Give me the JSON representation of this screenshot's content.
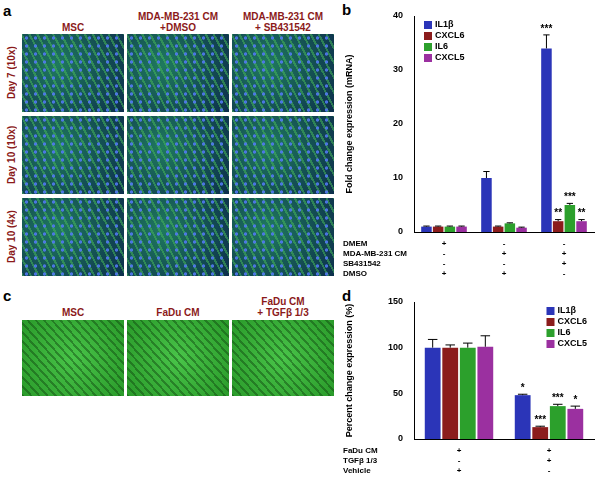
{
  "panel_a": {
    "label": "a",
    "columns": [
      [
        "MSC"
      ],
      [
        "MDA-MB-231 CM",
        "+DMSO"
      ],
      [
        "MDA-MB-231 CM",
        "+ SB431542"
      ]
    ],
    "rows": [
      "Day 7 (10x)",
      "Day 10 (10x)",
      "Day 10 (4x)"
    ]
  },
  "panel_c": {
    "label": "c",
    "columns": [
      [
        "MSC"
      ],
      [
        "FaDu CM"
      ],
      [
        "FaDu CM",
        "+ TGFβ 1/3"
      ]
    ]
  },
  "chart_data": [
    {
      "panel": "b",
      "type": "bar",
      "y_label": "Fold change expression (mRNA)",
      "categories": [
        null,
        null,
        null
      ],
      "series": [
        {
          "name": "IL1β",
          "color": "#2b35b8",
          "values": [
            1,
            10,
            34
          ],
          "errors": [
            0.1,
            1.2,
            2.5
          ],
          "significance": [
            null,
            null,
            "***"
          ]
        },
        {
          "name": "CXCL6",
          "color": "#8b1c1c",
          "values": [
            1,
            1,
            2
          ],
          "errors": [
            0.1,
            0.1,
            0.3
          ],
          "significance": [
            null,
            null,
            "**"
          ]
        },
        {
          "name": "IL6",
          "color": "#2ca02c",
          "values": [
            1,
            1.6,
            5
          ],
          "errors": [
            0.1,
            0.1,
            0.3
          ],
          "significance": [
            null,
            null,
            "***"
          ]
        },
        {
          "name": "CXCL5",
          "color": "#9b30a0",
          "values": [
            1,
            0.8,
            2
          ],
          "errors": [
            0.1,
            0.1,
            0.3
          ],
          "significance": [
            null,
            null,
            "**"
          ]
        }
      ],
      "ylim": [
        0,
        40
      ],
      "yticks": [
        0,
        10,
        20,
        30,
        40
      ],
      "grid": false,
      "legend": "upper left",
      "tick_labels": "y",
      "conditions": [
        {
          "name": "DMEM",
          "values": [
            "+",
            "-",
            "-"
          ]
        },
        {
          "name": "MDA-MB-231 CM",
          "values": [
            "-",
            "+",
            "+"
          ]
        },
        {
          "name": "SB431542",
          "values": [
            "-",
            "-",
            "+"
          ]
        },
        {
          "name": "DMSO",
          "values": [
            "+",
            "+",
            "-"
          ]
        }
      ]
    },
    {
      "panel": "d",
      "type": "bar",
      "y_label": "Percent change expression (%)",
      "categories": [
        null,
        null
      ],
      "series": [
        {
          "name": "IL1β",
          "color": "#2b35b8",
          "values": [
            100,
            48
          ],
          "errors": [
            9,
            1
          ],
          "significance": [
            null,
            "*"
          ]
        },
        {
          "name": "CXCL6",
          "color": "#8b1c1c",
          "values": [
            100,
            13
          ],
          "errors": [
            3,
            1
          ],
          "significance": [
            null,
            "***"
          ]
        },
        {
          "name": "IL6",
          "color": "#2ca02c",
          "values": [
            100,
            36
          ],
          "errors": [
            5,
            2
          ],
          "significance": [
            null,
            "***"
          ]
        },
        {
          "name": "CXCL5",
          "color": "#9b30a0",
          "values": [
            101,
            33
          ],
          "errors": [
            12,
            3
          ],
          "significance": [
            null,
            "*"
          ]
        }
      ],
      "ylim": [
        0,
        150
      ],
      "yticks": [
        0,
        50,
        100,
        150
      ],
      "grid": false,
      "legend": "upper right",
      "tick_labels": "y",
      "conditions": [
        {
          "name": "FaDu CM",
          "values": [
            "+",
            "+"
          ]
        },
        {
          "name": "TGFβ 1/3",
          "values": [
            "-",
            "+"
          ]
        },
        {
          "name": "Vehicle",
          "values": [
            "+",
            "-"
          ]
        }
      ]
    }
  ]
}
